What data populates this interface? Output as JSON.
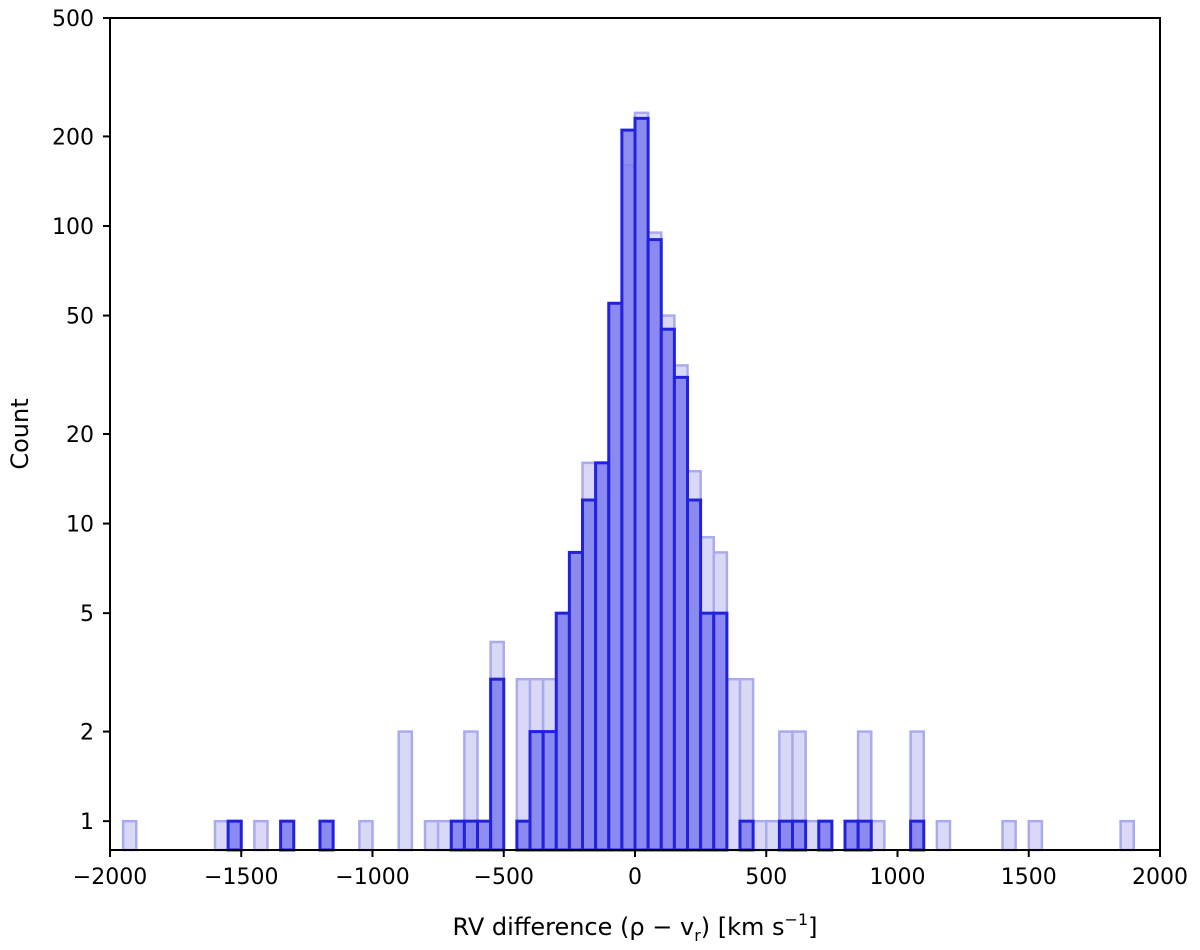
{
  "chart_data": {
    "type": "bar",
    "title": "",
    "xlabel": "RV difference (ρ − v",
    "xlabel_sub": "r",
    "xlabel_mid": ") [km s",
    "xlabel_sup": "−1",
    "xlabel_end": "]",
    "ylabel": "Count",
    "xlim": [
      -2000,
      2000
    ],
    "ylim": [
      0.8,
      500
    ],
    "yscale": "log",
    "bin_width": 50,
    "xticks": [
      -2000,
      -1500,
      -1000,
      -500,
      0,
      500,
      1000,
      1500,
      2000
    ],
    "xtick_labels": [
      "−2000",
      "−1500",
      "−1000",
      "−500",
      "0",
      "500",
      "1000",
      "1500",
      "2000"
    ],
    "yticks": [
      1,
      2,
      5,
      10,
      20,
      50,
      100,
      200,
      500
    ],
    "ytick_labels": [
      "1",
      "2",
      "5",
      "10",
      "20",
      "50",
      "100",
      "200",
      "500"
    ],
    "colors": {
      "light_fill": "#d9d9f7",
      "light_edge": "#aaaaee",
      "dark_fill": "#7b7bf0",
      "dark_edge": "#2222dd"
    },
    "series": [
      {
        "style": "light",
        "bins": [
          [
            -1950,
            1
          ],
          [
            -1600,
            1
          ],
          [
            -1550,
            1
          ],
          [
            -1450,
            1
          ],
          [
            -1350,
            1
          ],
          [
            -1200,
            1
          ],
          [
            -1050,
            1
          ],
          [
            -900,
            2
          ],
          [
            -800,
            1
          ],
          [
            -750,
            1
          ],
          [
            -700,
            1
          ],
          [
            -650,
            2
          ],
          [
            -550,
            4
          ],
          [
            -450,
            3
          ],
          [
            -400,
            3
          ],
          [
            -350,
            3
          ],
          [
            -300,
            5
          ],
          [
            -250,
            8
          ],
          [
            -200,
            16
          ],
          [
            -150,
            16
          ],
          [
            -100,
            55
          ],
          [
            -50,
            160
          ],
          [
            0,
            240
          ],
          [
            50,
            95
          ],
          [
            100,
            50
          ],
          [
            150,
            34
          ],
          [
            200,
            15
          ],
          [
            250,
            9
          ],
          [
            300,
            8
          ],
          [
            350,
            3
          ],
          [
            400,
            3
          ],
          [
            450,
            1
          ],
          [
            500,
            1
          ],
          [
            550,
            2
          ],
          [
            600,
            2
          ],
          [
            650,
            1
          ],
          [
            700,
            1
          ],
          [
            800,
            1
          ],
          [
            850,
            2
          ],
          [
            900,
            1
          ],
          [
            1050,
            2
          ],
          [
            1150,
            1
          ],
          [
            1400,
            1
          ],
          [
            1500,
            1
          ],
          [
            1850,
            1
          ]
        ]
      },
      {
        "style": "dark",
        "bins": [
          [
            -1550,
            1
          ],
          [
            -1350,
            1
          ],
          [
            -1200,
            1
          ],
          [
            -700,
            1
          ],
          [
            -650,
            1
          ],
          [
            -600,
            1
          ],
          [
            -550,
            3
          ],
          [
            -450,
            1
          ],
          [
            -400,
            2
          ],
          [
            -350,
            2
          ],
          [
            -300,
            5
          ],
          [
            -250,
            8
          ],
          [
            -200,
            12
          ],
          [
            -150,
            16
          ],
          [
            -100,
            55
          ],
          [
            -50,
            210
          ],
          [
            0,
            230
          ],
          [
            50,
            90
          ],
          [
            100,
            45
          ],
          [
            150,
            31
          ],
          [
            200,
            12
          ],
          [
            250,
            5
          ],
          [
            300,
            5
          ],
          [
            400,
            1
          ],
          [
            550,
            1
          ],
          [
            600,
            1
          ],
          [
            700,
            1
          ],
          [
            800,
            1
          ],
          [
            850,
            1
          ],
          [
            1050,
            1
          ]
        ]
      }
    ]
  }
}
